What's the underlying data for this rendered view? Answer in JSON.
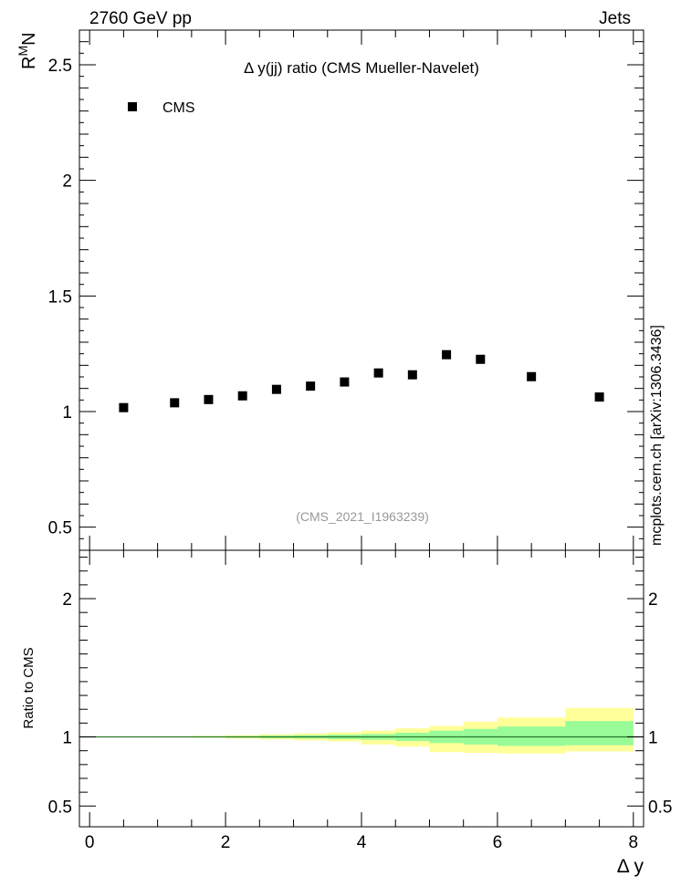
{
  "header": {
    "left": "2760 GeV pp",
    "right": "Jets",
    "side_label": "mcplots.cern.ch [arXiv:1306.3436]"
  },
  "chart_data": {
    "type": "scatter",
    "title": "Δ y(jj) ratio (CMS Mueller-Navelet)",
    "watermark": "(CMS_2021_I1963239)",
    "ylabel_main": "R^M N",
    "ylabel_ratio": "Ratio to CMS",
    "xlabel": "Δ y",
    "legend": {
      "label": "CMS",
      "placement": "top-left"
    },
    "xlim": [
      -0.15,
      8.15
    ],
    "ylim_main": [
      0.4,
      2.65
    ],
    "ylim_ratio": [
      0.35,
      2.35
    ],
    "x_ticks": [
      "0",
      "2",
      "4",
      "6",
      "8"
    ],
    "y_ticks_main": [
      "0.5",
      "1",
      "1.5",
      "2",
      "2.5"
    ],
    "y_ticks_ratio": [
      "0.5",
      "1",
      "2"
    ],
    "series": [
      {
        "name": "CMS",
        "x": [
          0.5,
          1.25,
          1.75,
          2.25,
          2.75,
          3.25,
          3.75,
          4.25,
          4.75,
          5.25,
          5.75,
          6.5,
          7.5
        ],
        "y": [
          1.017,
          1.038,
          1.052,
          1.068,
          1.096,
          1.11,
          1.128,
          1.167,
          1.159,
          1.246,
          1.226,
          1.151,
          1.063
        ]
      }
    ],
    "ratio_bands": {
      "edges": [
        0.0,
        1.0,
        1.5,
        2.0,
        2.5,
        3.0,
        3.5,
        4.0,
        4.5,
        5.0,
        5.5,
        6.0,
        7.0,
        8.0
      ],
      "stat_up": [
        1.0,
        1.002,
        1.004,
        1.006,
        1.009,
        1.012,
        1.016,
        1.021,
        1.03,
        1.045,
        1.058,
        1.075,
        1.115
      ],
      "stat_dn": [
        1.0,
        0.998,
        0.996,
        0.994,
        0.991,
        0.988,
        0.984,
        0.979,
        0.97,
        0.955,
        0.945,
        0.935,
        0.94
      ],
      "tot_up": [
        1.001,
        1.004,
        1.007,
        1.012,
        1.018,
        1.025,
        1.033,
        1.045,
        1.062,
        1.08,
        1.11,
        1.14,
        1.21
      ],
      "tot_dn": [
        0.999,
        0.996,
        0.993,
        0.988,
        0.982,
        0.975,
        0.967,
        0.945,
        0.93,
        0.89,
        0.885,
        0.88,
        0.895
      ],
      "stat_color": "#98fb98",
      "total_color": "#ffff99",
      "line_color": "#2a7a2a"
    }
  }
}
